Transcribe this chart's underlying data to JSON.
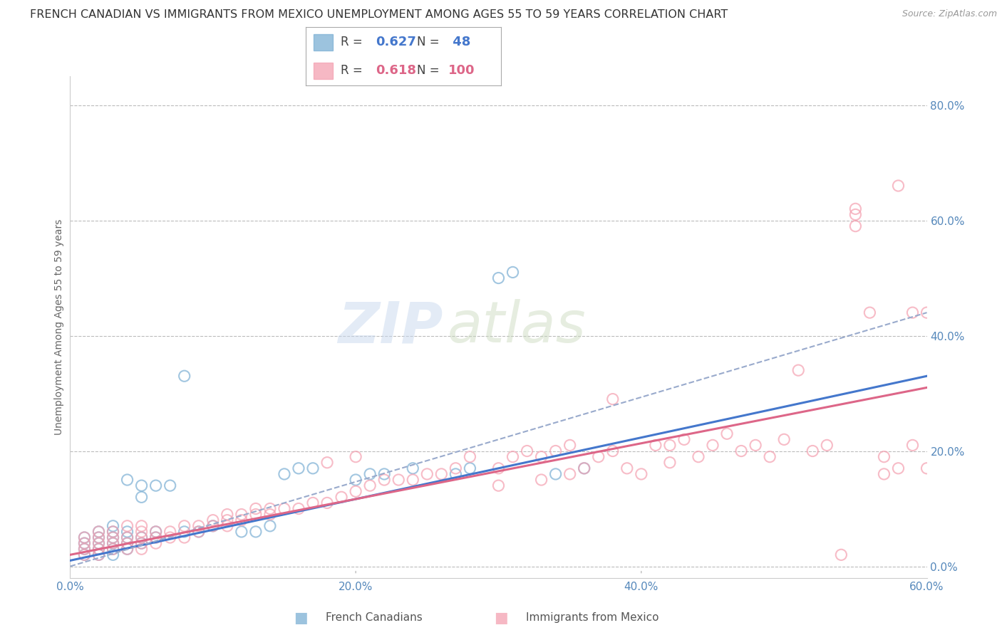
{
  "title": "FRENCH CANADIAN VS IMMIGRANTS FROM MEXICO UNEMPLOYMENT AMONG AGES 55 TO 59 YEARS CORRELATION CHART",
  "source": "Source: ZipAtlas.com",
  "ylabel_label": "Unemployment Among Ages 55 to 59 years",
  "xlim": [
    0.0,
    0.6
  ],
  "ylim": [
    -0.02,
    0.85
  ],
  "blue_color": "#7BAFD4",
  "pink_color": "#F4A0B0",
  "blue_line_color": "#4477CC",
  "pink_line_color": "#DD6688",
  "blue_dash_color": "#99AACC",
  "blue_R": 0.627,
  "blue_N": 48,
  "pink_R": 0.618,
  "pink_N": 100,
  "legend_label_blue": "French Canadians",
  "legend_label_pink": "Immigrants from Mexico",
  "watermark_zip": "ZIP",
  "watermark_atlas": "atlas",
  "tick_color": "#5588BB",
  "grid_color": "#BBBBBB",
  "title_fontsize": 11.5,
  "axis_label_fontsize": 10,
  "tick_fontsize": 11,
  "source_fontsize": 9,
  "blue_scatter_x": [
    0.01,
    0.01,
    0.01,
    0.01,
    0.02,
    0.02,
    0.02,
    0.02,
    0.02,
    0.03,
    0.03,
    0.03,
    0.03,
    0.03,
    0.03,
    0.04,
    0.04,
    0.04,
    0.04,
    0.04,
    0.05,
    0.05,
    0.05,
    0.05,
    0.06,
    0.06,
    0.06,
    0.07,
    0.08,
    0.08,
    0.09,
    0.1,
    0.12,
    0.13,
    0.14,
    0.15,
    0.16,
    0.17,
    0.2,
    0.21,
    0.22,
    0.24,
    0.27,
    0.28,
    0.3,
    0.31,
    0.34,
    0.36
  ],
  "blue_scatter_y": [
    0.02,
    0.03,
    0.04,
    0.05,
    0.02,
    0.03,
    0.04,
    0.05,
    0.06,
    0.02,
    0.03,
    0.04,
    0.05,
    0.06,
    0.07,
    0.03,
    0.04,
    0.05,
    0.06,
    0.15,
    0.04,
    0.05,
    0.12,
    0.14,
    0.05,
    0.06,
    0.14,
    0.14,
    0.06,
    0.33,
    0.06,
    0.07,
    0.06,
    0.06,
    0.07,
    0.16,
    0.17,
    0.17,
    0.15,
    0.16,
    0.16,
    0.17,
    0.16,
    0.17,
    0.5,
    0.51,
    0.16,
    0.17
  ],
  "pink_scatter_x": [
    0.01,
    0.01,
    0.01,
    0.01,
    0.02,
    0.02,
    0.02,
    0.02,
    0.02,
    0.03,
    0.03,
    0.03,
    0.03,
    0.04,
    0.04,
    0.04,
    0.04,
    0.05,
    0.05,
    0.05,
    0.05,
    0.05,
    0.06,
    0.06,
    0.06,
    0.07,
    0.07,
    0.08,
    0.08,
    0.09,
    0.09,
    0.1,
    0.1,
    0.11,
    0.11,
    0.11,
    0.12,
    0.12,
    0.13,
    0.13,
    0.14,
    0.14,
    0.15,
    0.16,
    0.17,
    0.18,
    0.18,
    0.19,
    0.2,
    0.2,
    0.21,
    0.22,
    0.23,
    0.24,
    0.25,
    0.26,
    0.27,
    0.28,
    0.3,
    0.3,
    0.31,
    0.32,
    0.33,
    0.33,
    0.34,
    0.35,
    0.35,
    0.36,
    0.37,
    0.38,
    0.38,
    0.39,
    0.4,
    0.41,
    0.42,
    0.42,
    0.43,
    0.44,
    0.45,
    0.46,
    0.47,
    0.48,
    0.49,
    0.5,
    0.51,
    0.52,
    0.53,
    0.54,
    0.55,
    0.55,
    0.55,
    0.56,
    0.57,
    0.57,
    0.58,
    0.58,
    0.59,
    0.59,
    0.6,
    0.6
  ],
  "pink_scatter_y": [
    0.02,
    0.03,
    0.04,
    0.05,
    0.02,
    0.03,
    0.04,
    0.05,
    0.06,
    0.03,
    0.04,
    0.05,
    0.06,
    0.03,
    0.04,
    0.05,
    0.07,
    0.03,
    0.04,
    0.05,
    0.06,
    0.07,
    0.04,
    0.05,
    0.06,
    0.05,
    0.06,
    0.05,
    0.07,
    0.06,
    0.07,
    0.07,
    0.08,
    0.07,
    0.08,
    0.09,
    0.08,
    0.09,
    0.09,
    0.1,
    0.09,
    0.1,
    0.1,
    0.1,
    0.11,
    0.11,
    0.18,
    0.12,
    0.13,
    0.19,
    0.14,
    0.15,
    0.15,
    0.15,
    0.16,
    0.16,
    0.17,
    0.19,
    0.14,
    0.17,
    0.19,
    0.2,
    0.15,
    0.19,
    0.2,
    0.16,
    0.21,
    0.17,
    0.19,
    0.2,
    0.29,
    0.17,
    0.16,
    0.21,
    0.18,
    0.21,
    0.22,
    0.19,
    0.21,
    0.23,
    0.2,
    0.21,
    0.19,
    0.22,
    0.34,
    0.2,
    0.21,
    0.02,
    0.59,
    0.61,
    0.62,
    0.44,
    0.16,
    0.19,
    0.66,
    0.17,
    0.21,
    0.44,
    0.17,
    0.44
  ]
}
